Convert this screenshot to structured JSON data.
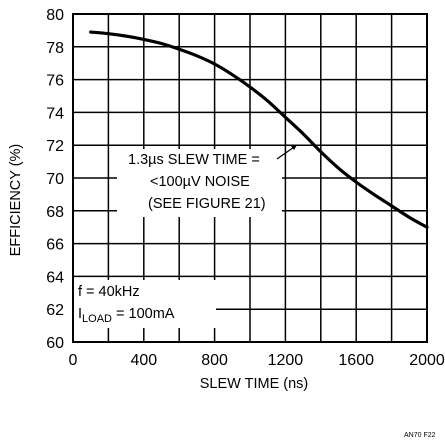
{
  "chart_data": {
    "type": "line",
    "xlabel": "SLEW TIME (ns)",
    "ylabel": "EFFICIENCY (%)",
    "xlim": [
      0,
      2000
    ],
    "ylim": [
      60,
      80
    ],
    "x_ticks": [
      0,
      400,
      800,
      1200,
      1600,
      2000
    ],
    "y_ticks": [
      60,
      62,
      64,
      66,
      68,
      70,
      72,
      74,
      76,
      78,
      80
    ],
    "x_grid_step": 200,
    "grid": true,
    "series": [
      {
        "x": [
          100,
          200,
          300,
          400,
          500,
          600,
          700,
          800,
          900,
          1000,
          1100,
          1200,
          1300,
          1400,
          1500,
          1600,
          1700,
          1800,
          1900,
          2000
        ],
        "values": [
          78.9,
          78.8,
          78.65,
          78.45,
          78.2,
          77.85,
          77.45,
          76.95,
          76.3,
          75.55,
          74.7,
          73.7,
          72.7,
          71.6,
          70.6,
          69.75,
          69.0,
          68.3,
          67.6,
          67.0
        ]
      }
    ],
    "annotations": {
      "slew_note": [
        "1.3µs SLEW TIME =",
        "<100µV NOISE",
        "(SEE FIGURE 21)"
      ],
      "conditions": {
        "freq": "f = 40kHz",
        "iload_main": "I",
        "iload_sub": "LOAD",
        "iload_rest": " = 100mA"
      }
    },
    "figure_id": "AN70 F22"
  }
}
